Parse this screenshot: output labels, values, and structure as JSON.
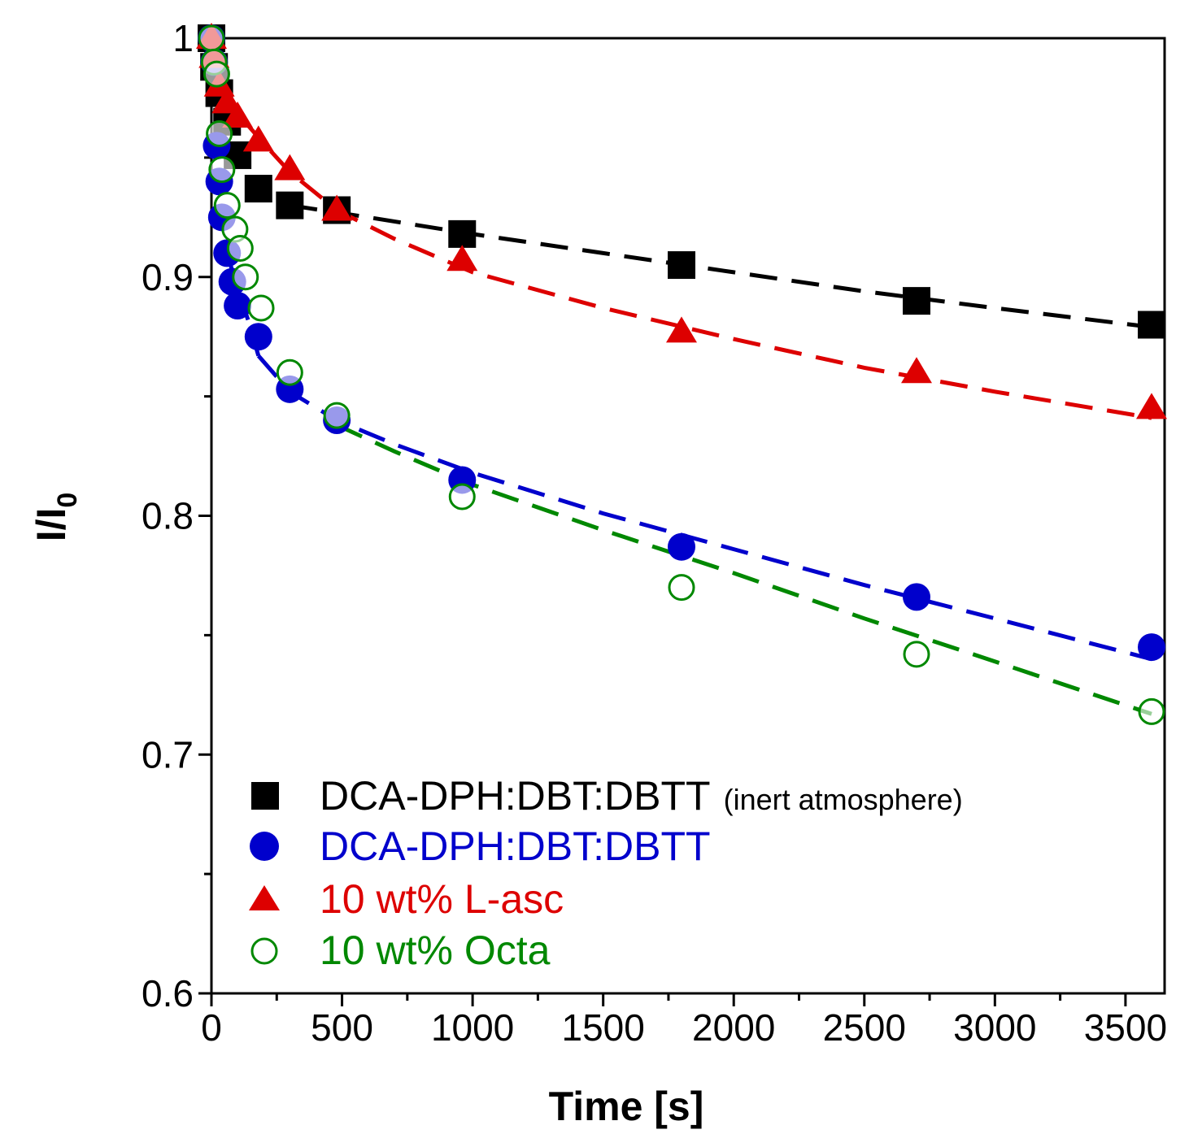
{
  "chart_data": {
    "type": "scatter",
    "xlabel": "Time [s]",
    "ylabel_main": "I/I",
    "ylabel_sub": "0",
    "xlim": [
      -40,
      3640
    ],
    "ylim": [
      0.6,
      1.0
    ],
    "x_ticks": [
      0,
      500,
      1000,
      1500,
      2000,
      2500,
      3000,
      3500
    ],
    "x_tick_labels": [
      "0",
      "500",
      "1000",
      "1500",
      "2000",
      "2500",
      "3000",
      "3500"
    ],
    "y_ticks": [
      0.6,
      0.7,
      0.8,
      0.9,
      1.0
    ],
    "y_tick_labels": [
      "0.6",
      "0.7",
      "0.8",
      "0.9",
      "1"
    ],
    "grid": false,
    "legend_position": "bottom-left",
    "series": [
      {
        "name": "DCA-DPH:DBT:DBTT",
        "note": "(inert atmosphere)",
        "color": "#000000",
        "marker": "square",
        "x": [
          0,
          10,
          30,
          60,
          100,
          180,
          300,
          480,
          960,
          1800,
          2700,
          3600
        ],
        "y": [
          1.0,
          0.988,
          0.977,
          0.965,
          0.951,
          0.937,
          0.93,
          0.928,
          0.918,
          0.905,
          0.89,
          0.88
        ],
        "fit_x": [
          300,
          600,
          1000,
          1500,
          2000,
          2500,
          3000,
          3600
        ],
        "fit_y": [
          0.93,
          0.925,
          0.918,
          0.91,
          0.902,
          0.894,
          0.887,
          0.879
        ]
      },
      {
        "name": "DCA-DPH:DBT:DBTT",
        "color": "#0000cc",
        "marker": "circle",
        "x": [
          0,
          10,
          20,
          30,
          40,
          60,
          80,
          100,
          180,
          300,
          480,
          960,
          1800,
          2700,
          3600
        ],
        "y": [
          1.0,
          0.99,
          0.955,
          0.94,
          0.925,
          0.91,
          0.898,
          0.888,
          0.875,
          0.853,
          0.84,
          0.815,
          0.787,
          0.766,
          0.745
        ],
        "fit_x": [
          180,
          300,
          480,
          700,
          1000,
          1500,
          2000,
          2500,
          3000,
          3600
        ],
        "fit_y": [
          0.867,
          0.852,
          0.84,
          0.83,
          0.818,
          0.801,
          0.786,
          0.771,
          0.757,
          0.74
        ],
        "fit_alt_x": [
          60,
          100,
          140,
          180
        ],
        "fit_alt_y": [
          0.91,
          0.895,
          0.882,
          0.867
        ]
      },
      {
        "name": "10 wt% L-asc",
        "color": "#dd0000",
        "marker": "triangle",
        "x": [
          0,
          10,
          30,
          60,
          100,
          180,
          300,
          480,
          960,
          1800,
          2700,
          3600
        ],
        "y": [
          1.0,
          0.992,
          0.98,
          0.973,
          0.967,
          0.957,
          0.945,
          0.928,
          0.907,
          0.877,
          0.86,
          0.845
        ],
        "fit_x": [
          0,
          60,
          120,
          200,
          300,
          480,
          700,
          1000,
          1500,
          2000,
          2500,
          3000,
          3600
        ],
        "fit_y": [
          0.978,
          0.972,
          0.966,
          0.956,
          0.944,
          0.928,
          0.916,
          0.902,
          0.887,
          0.874,
          0.862,
          0.852,
          0.841
        ]
      },
      {
        "name": "10 wt% Octa",
        "color": "#008800",
        "marker": "open-circle",
        "x": [
          0,
          10,
          20,
          30,
          40,
          60,
          90,
          110,
          130,
          190,
          300,
          480,
          960,
          1800,
          2700,
          3600
        ],
        "y": [
          1.0,
          0.99,
          0.985,
          0.96,
          0.945,
          0.93,
          0.92,
          0.912,
          0.9,
          0.887,
          0.86,
          0.842,
          0.808,
          0.77,
          0.742,
          0.718
        ],
        "fit_x": [
          480,
          700,
          1000,
          1500,
          2000,
          2500,
          3000,
          3600
        ],
        "fit_y": [
          0.838,
          0.827,
          0.813,
          0.794,
          0.776,
          0.757,
          0.739,
          0.717
        ]
      }
    ]
  }
}
